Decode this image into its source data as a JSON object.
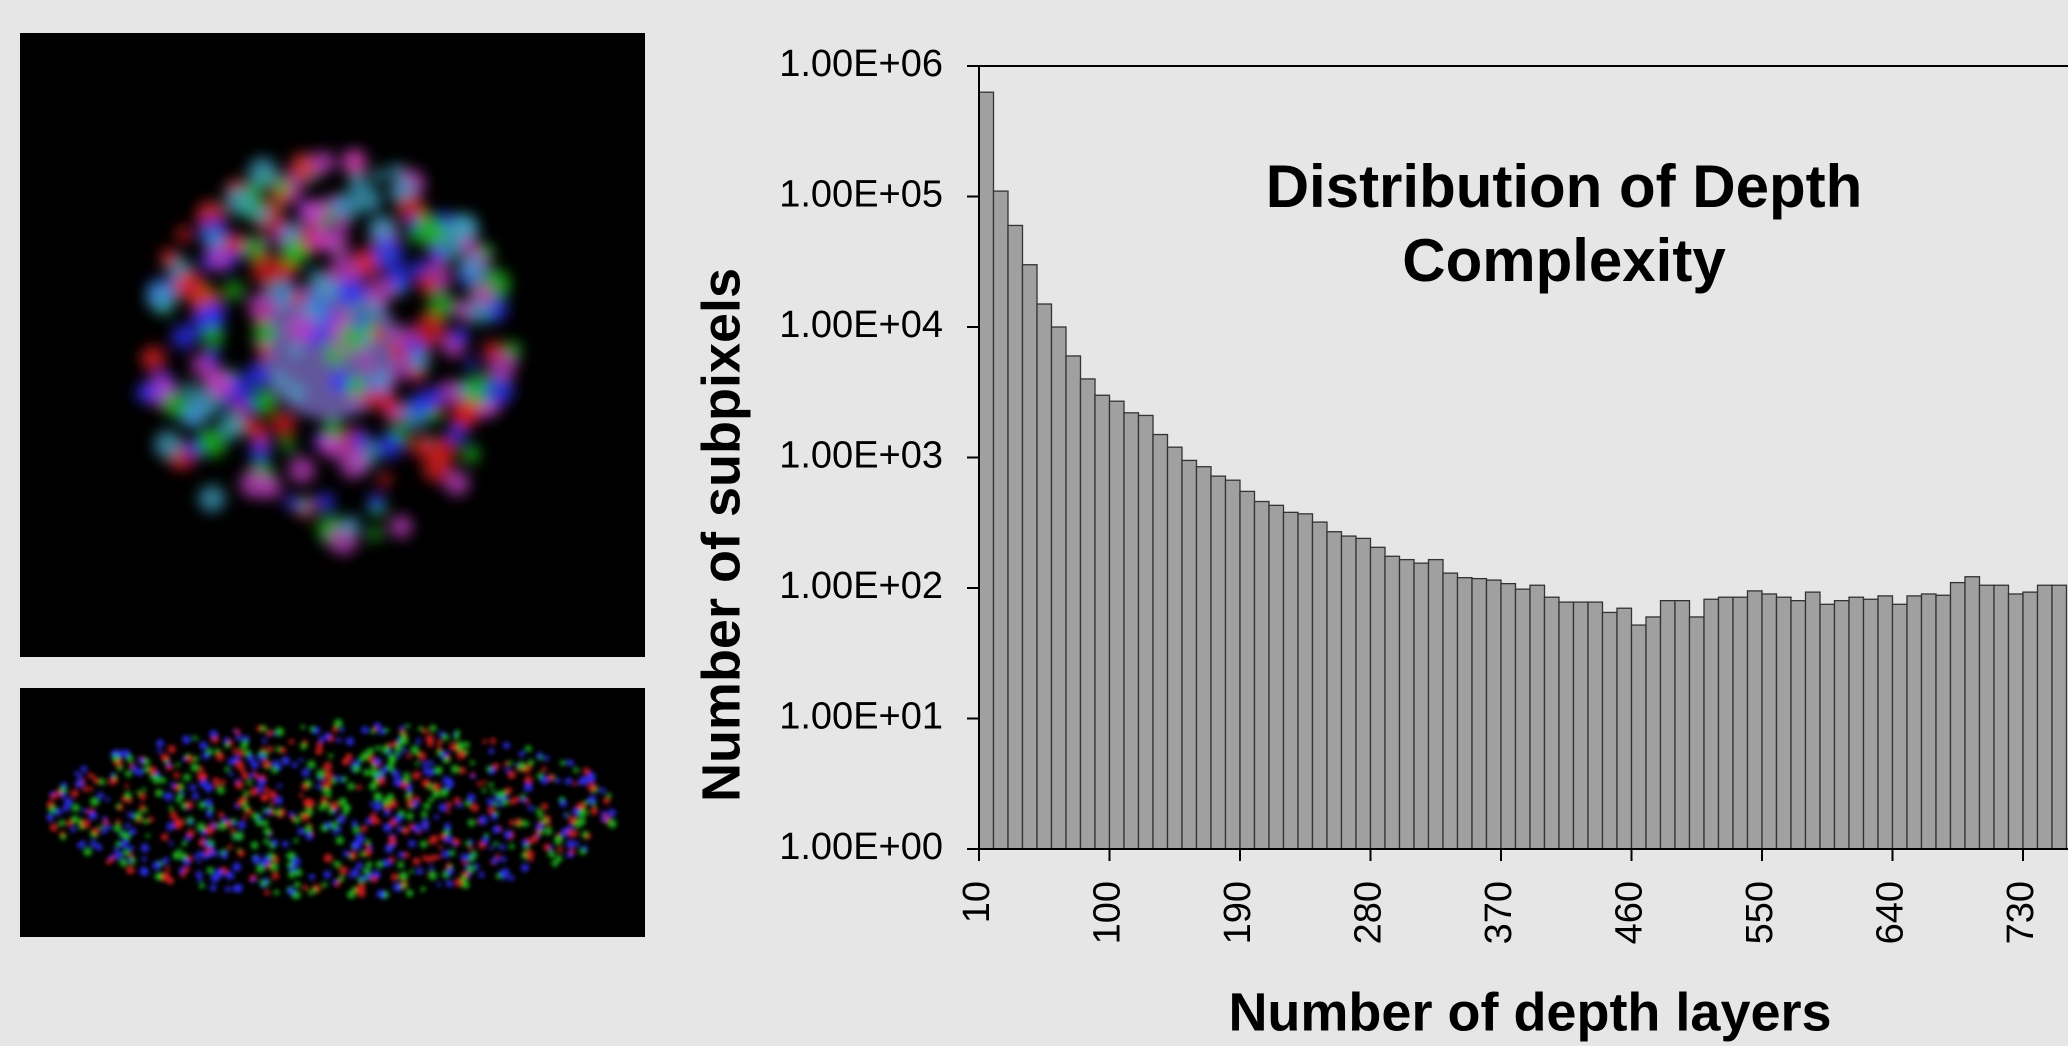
{
  "chart_data": {
    "type": "bar",
    "title": "Distribution of Depth Complexity",
    "x_label": "Number of depth layers",
    "y_label": "Number of subpixels",
    "color": "#a0a0a0",
    "log_y": true,
    "ylim": [
      1,
      1000000
    ],
    "yticks": [
      {
        "value": 1,
        "label": "1.00E+00"
      },
      {
        "value": 10,
        "label": "1.00E+01"
      },
      {
        "value": 100,
        "label": "1.00E+02"
      },
      {
        "value": 1000,
        "label": "1.00E+03"
      },
      {
        "value": 10000,
        "label": "1.00E+04"
      },
      {
        "value": 100000,
        "label": "1.00E+05"
      },
      {
        "value": 1000000,
        "label": "1.00E+06"
      }
    ],
    "categories": [
      10,
      null,
      null,
      null,
      null,
      null,
      null,
      null,
      null,
      100,
      null,
      null,
      null,
      null,
      null,
      null,
      null,
      null,
      190,
      null,
      null,
      null,
      null,
      null,
      null,
      null,
      null,
      280,
      null,
      null,
      null,
      null,
      null,
      null,
      null,
      null,
      370,
      null,
      null,
      null,
      null,
      null,
      null,
      null,
      null,
      460,
      null,
      null,
      null,
      null,
      null,
      null,
      null,
      null,
      550,
      null,
      null,
      null,
      null,
      null,
      null,
      null,
      null,
      640,
      null,
      null,
      null,
      null,
      null,
      null,
      null,
      null,
      730,
      null,
      null
    ],
    "values": [
      630000,
      110000,
      60000,
      30000,
      15000,
      10000,
      6000,
      4000,
      3000,
      2700,
      2200,
      2100,
      1500,
      1200,
      950,
      850,
      720,
      670,
      550,
      460,
      430,
      380,
      370,
      320,
      270,
      250,
      240,
      205,
      175,
      165,
      155,
      165,
      130,
      120,
      118,
      115,
      108,
      98,
      105,
      85,
      78,
      78,
      78,
      65,
      70,
      52,
      60,
      80,
      80,
      60,
      82,
      85,
      85,
      95,
      90,
      85,
      80,
      93,
      75,
      80,
      85,
      82,
      87,
      75,
      87,
      90,
      88,
      110,
      122,
      105,
      105,
      90,
      93,
      105,
      105
    ]
  }
}
